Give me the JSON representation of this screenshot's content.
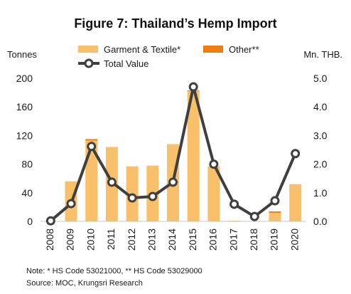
{
  "chart_data": {
    "type": "bar",
    "title": "Figure 7: Thailand’s Hemp Import",
    "y_left_label": "Tonnes",
    "y_right_label": "Mn. THB.",
    "y_left_ticks": [
      "0",
      "40",
      "80",
      "120",
      "160",
      "200"
    ],
    "y_right_ticks": [
      "0.0",
      "1.0",
      "2.0",
      "3.0",
      "4.0",
      "5.0"
    ],
    "ylim_left": [
      0,
      200
    ],
    "ylim_right": [
      0,
      5
    ],
    "categories": [
      "2008",
      "2009",
      "2010",
      "2011",
      "2012",
      "2013",
      "2014",
      "2015",
      "2016",
      "2017",
      "2018",
      "2019",
      "2020"
    ],
    "series": [
      {
        "name": "Garment & Textile*",
        "kind": "bar",
        "axis": "left",
        "color": "#F9C06B",
        "values": [
          0,
          56,
          113,
          104,
          77,
          78,
          108,
          182,
          77,
          1,
          0,
          12,
          52
        ]
      },
      {
        "name": "Other**",
        "kind": "bar",
        "axis": "left",
        "color": "#F07D12",
        "values": [
          0,
          0,
          2,
          0,
          0,
          0,
          0,
          1,
          0,
          0,
          0,
          2,
          0
        ]
      },
      {
        "name": "Total Value",
        "kind": "line",
        "axis": "right",
        "color": "#3f3f3f",
        "values": [
          0.02,
          0.62,
          2.62,
          1.37,
          0.82,
          0.87,
          1.37,
          4.7,
          2.0,
          0.6,
          0.17,
          0.72,
          2.37
        ]
      }
    ],
    "legend_position": "top-center",
    "grid": false
  },
  "notes": {
    "line1": "Note:  * HS Code 53021000, ** HS Code 53029000",
    "line2": "Source: MOC, Krungsri Research"
  }
}
